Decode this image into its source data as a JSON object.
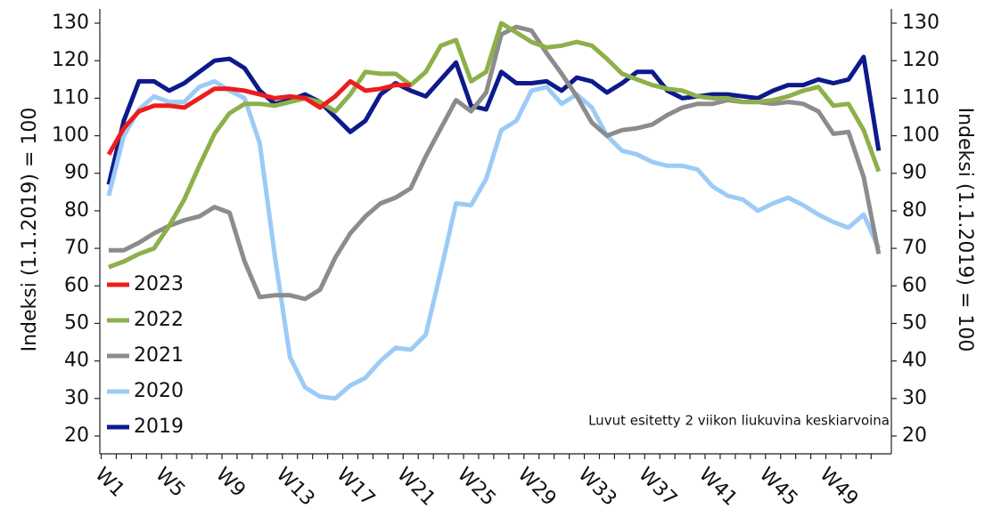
{
  "chart_data": {
    "type": "line",
    "ylabel": "Indeksi (1.1.2019) = 100",
    "y2label": "Indeksi (1.1.2019) = 100",
    "annotation": "Luvut esitetty 2 viikon liukuvina keskiarvoina",
    "categories": [
      "W1",
      null,
      null,
      null,
      "W5",
      null,
      null,
      null,
      "W9",
      null,
      null,
      null,
      "W13",
      null,
      null,
      null,
      "W17",
      null,
      null,
      null,
      "W21",
      null,
      null,
      null,
      "W25",
      null,
      null,
      null,
      "W29",
      null,
      null,
      null,
      "W33",
      null,
      null,
      null,
      "W37",
      null,
      null,
      null,
      "W41",
      null,
      null,
      null,
      "W45",
      null,
      null,
      null,
      "W49",
      null,
      null,
      null
    ],
    "ylim": [
      20,
      130
    ],
    "yticks": [
      20,
      30,
      40,
      50,
      60,
      70,
      80,
      90,
      100,
      110,
      120,
      130
    ],
    "y2lim": [
      20,
      130
    ],
    "y2ticks": [
      20,
      30,
      40,
      50,
      60,
      70,
      80,
      90,
      100,
      110,
      120,
      130
    ],
    "legend": "lower left",
    "series": [
      {
        "name": "2023",
        "color": "#ee1c1c",
        "values": [
          95,
          102,
          106.5,
          108,
          108,
          107.5,
          110,
          112.5,
          112.5,
          112,
          111,
          110,
          110.5,
          110,
          107.5,
          110.5,
          114.5,
          112,
          112.5,
          113.5,
          113.5,
          null,
          null,
          null,
          null,
          null,
          null,
          null,
          null,
          null,
          null,
          null,
          null,
          null,
          null,
          null,
          null,
          null,
          null,
          null,
          null,
          null,
          null,
          null,
          null,
          null,
          null,
          null,
          null,
          null,
          null,
          null
        ]
      },
      {
        "name": "2022",
        "color": "#8db04a",
        "values": [
          65,
          66.5,
          68.5,
          70,
          76,
          83,
          92,
          100.5,
          106,
          108.5,
          108.5,
          108,
          109,
          110,
          109,
          106.5,
          111,
          117,
          116.5,
          116.5,
          113.5,
          117,
          124,
          125.5,
          114.5,
          117,
          130,
          127.5,
          125,
          123.5,
          124,
          125,
          124,
          120.5,
          116.5,
          115,
          113.5,
          112.5,
          112,
          110.5,
          110,
          110,
          109,
          109,
          109.5,
          110.5,
          112,
          113,
          108,
          108.5,
          101.5,
          90.5
        ]
      },
      {
        "name": "2021",
        "color": "#8c8c8c",
        "values": [
          69.5,
          69.5,
          71.5,
          74,
          76,
          77.5,
          78.5,
          81,
          79.5,
          66.5,
          57,
          57.5,
          57.5,
          56.5,
          59,
          67.5,
          74,
          78.5,
          82,
          83.5,
          86,
          94.5,
          102,
          109.5,
          106.5,
          111.5,
          127,
          129,
          128,
          122,
          116.5,
          110.5,
          103.5,
          100,
          101.5,
          102,
          103,
          105.5,
          107.5,
          108.5,
          108.5,
          109.5,
          109,
          109,
          108.5,
          109,
          108.5,
          106.5,
          100.5,
          101,
          89,
          68.5
        ]
      },
      {
        "name": "2020",
        "color": "#9ccbf6",
        "values": [
          84,
          100,
          107,
          110.5,
          109,
          109,
          113,
          114.5,
          112,
          110,
          98,
          68,
          41,
          33,
          30.5,
          30,
          33.5,
          35.5,
          40,
          43.5,
          43,
          47,
          64,
          82,
          81.5,
          88.5,
          101.5,
          104,
          112,
          113,
          108.5,
          111,
          107.5,
          100,
          96,
          95,
          93,
          92,
          92,
          91,
          86.5,
          84,
          83,
          80,
          82,
          83.5,
          81.5,
          79,
          77,
          75.5,
          79,
          70
        ]
      },
      {
        "name": "2019",
        "color": "#0d1a8c",
        "values": [
          87,
          104,
          114.5,
          114.5,
          112,
          114,
          117,
          120,
          120.5,
          118,
          112,
          108.5,
          109.5,
          111,
          109,
          105,
          101,
          104,
          111,
          114,
          112,
          110.5,
          115,
          119.5,
          108,
          107,
          117,
          114,
          114,
          114.5,
          112,
          115.5,
          114.5,
          111.5,
          114,
          117,
          117,
          112,
          110,
          110.5,
          111,
          111,
          110.5,
          110,
          112,
          113.5,
          113.5,
          115,
          114,
          115,
          121,
          96
        ]
      }
    ]
  }
}
